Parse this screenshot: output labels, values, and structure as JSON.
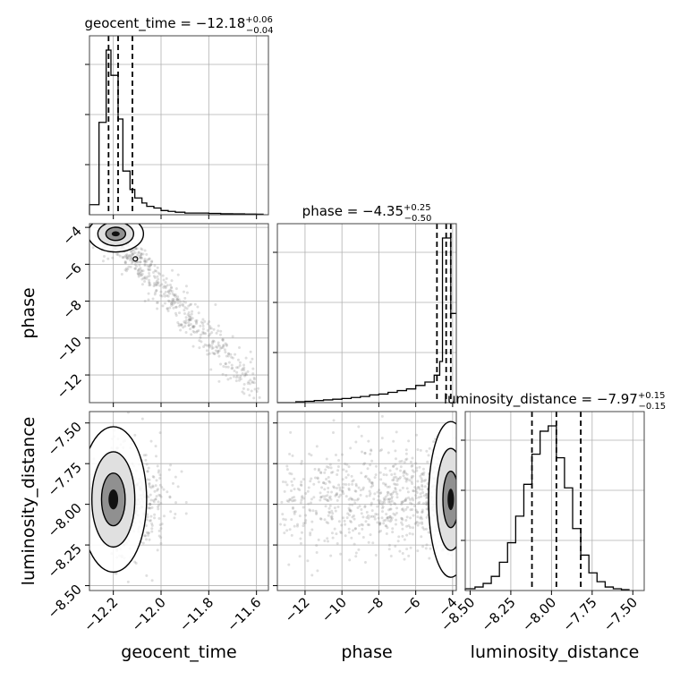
{
  "chart_data": {
    "type": "corner",
    "parameters": [
      "geocent_time",
      "phase",
      "luminosity_distance"
    ],
    "grid": true,
    "titles": [
      {
        "param": "geocent_time",
        "prefix": "geocent_time = ",
        "median": "−12.18",
        "plus": "+0.06",
        "minus": "−0.04"
      },
      {
        "param": "phase",
        "prefix": "phase = ",
        "median": "−4.35",
        "plus": "+0.25",
        "minus": "−0.50"
      },
      {
        "param": "luminosity_distance",
        "prefix": "luminosity_distance = ",
        "median": "−7.97",
        "plus": "+0.15",
        "minus": "−0.15"
      }
    ],
    "axes": {
      "geocent_time": {
        "range": [
          -12.3,
          -11.55
        ],
        "ticks": [
          -12.2,
          -12.0,
          -11.8,
          -11.6
        ],
        "tick_labels": [
          "−12.2",
          "−12.0",
          "−11.8",
          "−11.6"
        ]
      },
      "phase": {
        "range": [
          -13.5,
          -3.8
        ],
        "ticks": [
          -12,
          -10,
          -8,
          -6,
          -4
        ],
        "tick_labels": [
          "−12",
          "−10",
          "−8",
          "−6",
          "−4"
        ]
      },
      "luminosity_distance": {
        "range": [
          -8.53,
          -7.43
        ],
        "ticks": [
          -8.5,
          -8.25,
          -8.0,
          -7.75,
          -7.5
        ],
        "tick_labels": [
          "−8.50",
          "−8.25",
          "−8.00",
          "−7.75",
          "−7.50"
        ]
      }
    },
    "histograms": [
      {
        "param": "geocent_time",
        "bin_edges": [
          -12.3,
          -12.26,
          -12.23,
          -12.21,
          -12.18,
          -12.16,
          -12.13,
          -12.11,
          -12.08,
          -12.06,
          -12.03,
          -12.0,
          -11.97,
          -11.94,
          -11.9,
          -11.85,
          -11.8,
          -11.75,
          -11.7,
          -11.65,
          -11.6,
          -11.57
        ],
        "counts": [
          0.06,
          0.55,
          0.98,
          0.83,
          0.57,
          0.26,
          0.15,
          0.1,
          0.07,
          0.05,
          0.04,
          0.025,
          0.02,
          0.015,
          0.01,
          0.01,
          0.008,
          0.006,
          0.005,
          0.004,
          0.003
        ],
        "quantiles": [
          -12.22,
          -12.18,
          -12.12
        ]
      },
      {
        "param": "phase",
        "bin_edges": [
          -13.5,
          -12.5,
          -12.0,
          -11.5,
          -11.0,
          -10.5,
          -10.0,
          -9.5,
          -9.0,
          -8.5,
          -8.0,
          -7.5,
          -7.0,
          -6.5,
          -6.0,
          -5.5,
          -5.0,
          -4.7,
          -4.55,
          -4.1,
          -3.8
        ],
        "counts": [
          0.0,
          0.005,
          0.008,
          0.012,
          0.016,
          0.02,
          0.024,
          0.03,
          0.036,
          0.045,
          0.05,
          0.06,
          0.07,
          0.08,
          0.1,
          0.12,
          0.16,
          0.24,
          0.96,
          0.52
        ],
        "quantiles": [
          -4.85,
          -4.35,
          -4.1
        ]
      },
      {
        "param": "luminosity_distance",
        "bin_edges": [
          -8.53,
          -8.47,
          -8.42,
          -8.37,
          -8.32,
          -8.27,
          -8.22,
          -8.17,
          -8.12,
          -8.07,
          -8.02,
          -7.97,
          -7.92,
          -7.87,
          -7.82,
          -7.77,
          -7.72,
          -7.67,
          -7.62,
          -7.57,
          -7.52
        ],
        "counts": [
          0.01,
          0.02,
          0.04,
          0.08,
          0.16,
          0.27,
          0.42,
          0.6,
          0.77,
          0.9,
          0.93,
          0.75,
          0.58,
          0.35,
          0.2,
          0.1,
          0.05,
          0.02,
          0.01,
          0.005
        ],
        "quantiles": [
          -8.12,
          -7.97,
          -7.82
        ]
      }
    ],
    "scatter_2d": [
      {
        "x": "geocent_time",
        "y": "phase",
        "trend": "negative_linear",
        "mode_x": -12.19,
        "mode_y": -4.35,
        "samples": 900
      },
      {
        "x": "geocent_time",
        "y": "luminosity_distance",
        "trend": "none",
        "mode_x": -12.2,
        "mode_y": -7.97,
        "samples": 900
      },
      {
        "x": "phase",
        "y": "luminosity_distance",
        "trend": "none",
        "mode_x": -4.1,
        "mode_y": -7.97,
        "samples": 900
      }
    ],
    "colors": {
      "points": "#808080",
      "lines": "#000000",
      "grid": "#b0b0b0",
      "spine": "#444444"
    }
  }
}
